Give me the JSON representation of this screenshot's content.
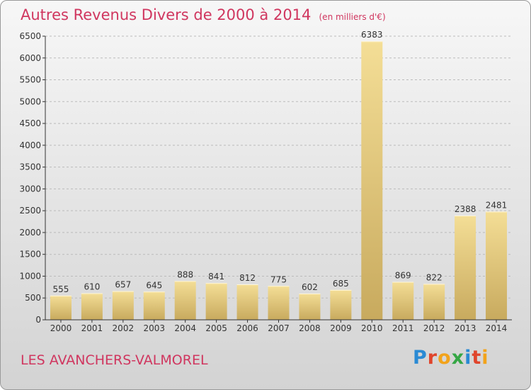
{
  "header": {
    "title": "Autres Revenus Divers de 2000 à 2014",
    "unit": "(en milliers d'€)"
  },
  "footer": {
    "commune": "LES AVANCHERS-VALMOREL",
    "logo": {
      "letters": [
        "P",
        "r",
        "o",
        "x",
        "i",
        "t",
        "i"
      ],
      "colors": [
        "#2a8ad4",
        "#e0452c",
        "#f2a31b",
        "#35a745",
        "#2a8ad4",
        "#e0452c",
        "#f2a31b"
      ]
    }
  },
  "colors": {
    "title": "#d0365f",
    "bar_top": "#f4de96",
    "bar_bottom": "#c8aa5e",
    "gridline": "#bbbbbb",
    "axis": "#333333"
  },
  "chart_data": {
    "type": "bar",
    "categories": [
      "2000",
      "2001",
      "2002",
      "2003",
      "2004",
      "2005",
      "2006",
      "2007",
      "2008",
      "2009",
      "2010",
      "2011",
      "2012",
      "2013",
      "2014"
    ],
    "values": [
      555,
      610,
      657,
      645,
      888,
      841,
      812,
      775,
      602,
      685,
      6383,
      869,
      822,
      2388,
      2481
    ],
    "ylim": [
      0,
      6500
    ],
    "yticks": [
      0,
      500,
      1000,
      1500,
      2000,
      2500,
      3000,
      3500,
      4000,
      4500,
      5000,
      5500,
      6000,
      6500
    ],
    "grid": true,
    "title": "Autres Revenus Divers de 2000 à 2014",
    "xlabel": "",
    "ylabel": ""
  }
}
